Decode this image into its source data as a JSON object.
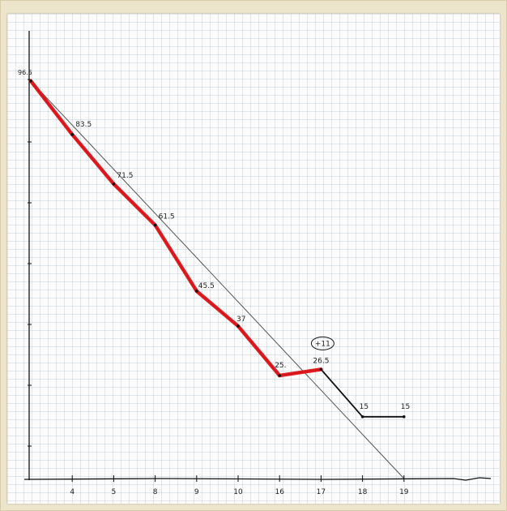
{
  "chart_data": {
    "type": "line",
    "categories": [
      "",
      "4",
      "5",
      "8",
      "9",
      "10",
      "16",
      "17",
      "18",
      "19"
    ],
    "series": [
      {
        "values": [
          96.5,
          83.5,
          71.5,
          61.5,
          45.5,
          37,
          25,
          26.5,
          15,
          15
        ],
        "data_labels": [
          "96.5",
          "83.5",
          "71.5",
          "61.5",
          "45.5",
          "37",
          "25.",
          "26.5",
          "15",
          "15"
        ],
        "color": "#e0161b"
      }
    ],
    "ideal_line": {
      "from": 96.5,
      "to": 0
    },
    "annotation": "+11",
    "ylim": [
      0,
      100
    ],
    "grid": true,
    "colors": {
      "actual": "#e0161b",
      "pen": "#111111",
      "ideal": "#555555"
    }
  }
}
